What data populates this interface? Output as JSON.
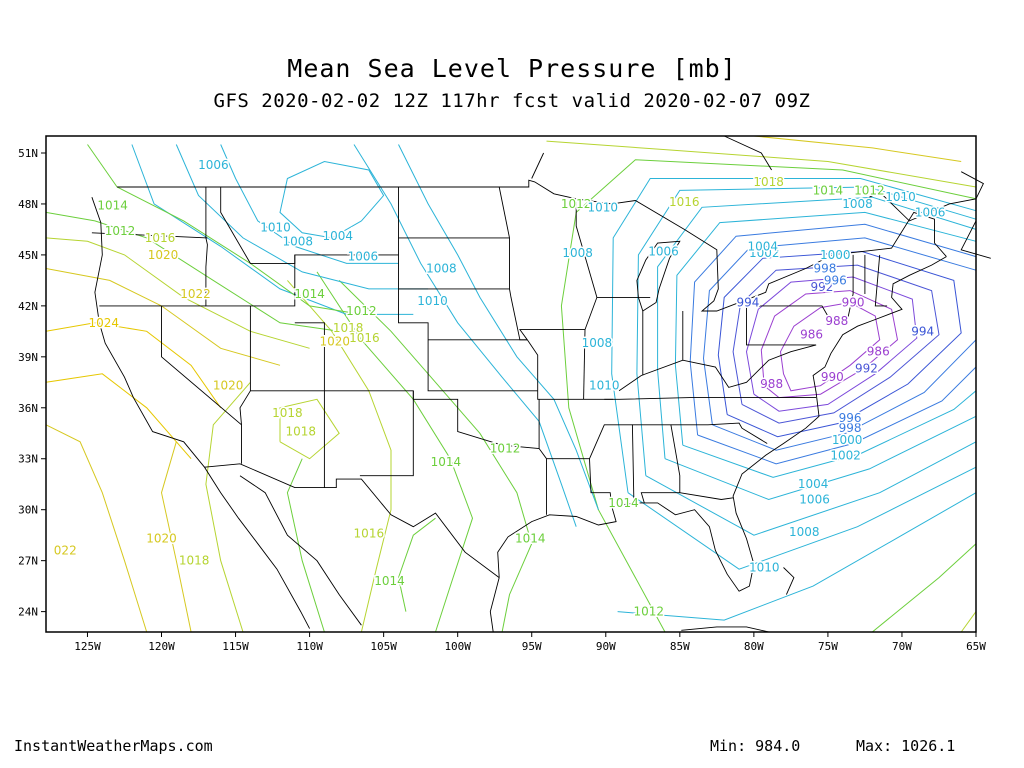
{
  "header": {
    "title": "Mean Sea Level Pressure [mb]",
    "subtitle": "GFS 2020-02-02 12Z 117hr fcst valid 2020-02-07 09Z"
  },
  "axes": {
    "lat_ticks": [
      "51N",
      "48N",
      "45N",
      "42N",
      "39N",
      "36N",
      "33N",
      "30N",
      "27N",
      "24N"
    ],
    "lon_ticks": [
      "125W",
      "120W",
      "115W",
      "110W",
      "105W",
      "100W",
      "95W",
      "90W",
      "85W",
      "80W",
      "75W",
      "70W",
      "65W"
    ]
  },
  "contour_labels": [
    {
      "text": "1006",
      "lon": -116.5,
      "lat": 50.3,
      "color": "#2cb4d8"
    },
    {
      "text": "1014",
      "lon": -123.3,
      "lat": 47.9,
      "color": "#6ccf3c"
    },
    {
      "text": "1012",
      "lon": -122.8,
      "lat": 46.4,
      "color": "#6ccf3c"
    },
    {
      "text": "1016",
      "lon": -120.1,
      "lat": 46.0,
      "color": "#b6d431"
    },
    {
      "text": "1020",
      "lon": -119.9,
      "lat": 45.0,
      "color": "#d6c820"
    },
    {
      "text": "1022",
      "lon": -117.7,
      "lat": 42.7,
      "color": "#d6c820"
    },
    {
      "text": "1024",
      "lon": -123.9,
      "lat": 41.0,
      "color": "#e6c700"
    },
    {
      "text": "1020",
      "lon": -115.5,
      "lat": 37.3,
      "color": "#d6c820"
    },
    {
      "text": "1018",
      "lon": -111.5,
      "lat": 35.7,
      "color": "#b6d431"
    },
    {
      "text": "1018",
      "lon": -110.6,
      "lat": 34.6,
      "color": "#b6d431"
    },
    {
      "text": "1010",
      "lon": -112.3,
      "lat": 46.6,
      "color": "#2cb4d8"
    },
    {
      "text": "1008",
      "lon": -110.8,
      "lat": 45.8,
      "color": "#2cb4d8"
    },
    {
      "text": "1004",
      "lon": -108.1,
      "lat": 46.1,
      "color": "#2cb4d8"
    },
    {
      "text": "1006",
      "lon": -106.4,
      "lat": 44.9,
      "color": "#2cb4d8"
    },
    {
      "text": "1014",
      "lon": -110.0,
      "lat": 42.7,
      "color": "#6ccf3c"
    },
    {
      "text": "1012",
      "lon": -106.5,
      "lat": 41.7,
      "color": "#6ccf3c"
    },
    {
      "text": "1018",
      "lon": -107.4,
      "lat": 40.7,
      "color": "#b6d431"
    },
    {
      "text": "1020",
      "lon": -108.3,
      "lat": 39.9,
      "color": "#d6c820"
    },
    {
      "text": "1016",
      "lon": -106.3,
      "lat": 40.1,
      "color": "#b6d431"
    },
    {
      "text": "1008",
      "lon": -101.1,
      "lat": 44.2,
      "color": "#2cb4d8"
    },
    {
      "text": "1010",
      "lon": -101.7,
      "lat": 42.3,
      "color": "#2cb4d8"
    },
    {
      "text": "1008",
      "lon": -90.6,
      "lat": 39.8,
      "color": "#2cb4d8"
    },
    {
      "text": "1010",
      "lon": -90.1,
      "lat": 37.3,
      "color": "#2cb4d8"
    },
    {
      "text": "1014",
      "lon": -100.8,
      "lat": 32.8,
      "color": "#6ccf3c"
    },
    {
      "text": "1012",
      "lon": -96.8,
      "lat": 33.6,
      "color": "#6ccf3c"
    },
    {
      "text": "1014",
      "lon": -88.8,
      "lat": 30.4,
      "color": "#6ccf3c"
    },
    {
      "text": "1016",
      "lon": -106.0,
      "lat": 28.6,
      "color": "#b6d431"
    },
    {
      "text": "1014",
      "lon": -95.1,
      "lat": 28.3,
      "color": "#6ccf3c"
    },
    {
      "text": "1014",
      "lon": -104.6,
      "lat": 25.8,
      "color": "#6ccf3c"
    },
    {
      "text": "1020",
      "lon": -120.0,
      "lat": 28.3,
      "color": "#d6c820"
    },
    {
      "text": "1018",
      "lon": -117.8,
      "lat": 27.0,
      "color": "#b6d431"
    },
    {
      "text": "022",
      "lon": -126.5,
      "lat": 27.6,
      "color": "#d6c820"
    },
    {
      "text": "1012",
      "lon": -87.1,
      "lat": 24.0,
      "color": "#6ccf3c"
    },
    {
      "text": "1010",
      "lon": -79.3,
      "lat": 26.6,
      "color": "#2cb4d8"
    },
    {
      "text": "1008",
      "lon": -76.6,
      "lat": 28.7,
      "color": "#2cb4d8"
    },
    {
      "text": "1006",
      "lon": -75.9,
      "lat": 30.6,
      "color": "#2cb4d8"
    },
    {
      "text": "1004",
      "lon": -76.0,
      "lat": 31.5,
      "color": "#2cb4d8"
    },
    {
      "text": "1002",
      "lon": -73.8,
      "lat": 33.2,
      "color": "#2cb4d8"
    },
    {
      "text": "1000",
      "lon": -73.7,
      "lat": 34.1,
      "color": "#2cb4d8"
    },
    {
      "text": "998",
      "lon": -73.5,
      "lat": 34.8,
      "color": "#3a7be0"
    },
    {
      "text": "996",
      "lon": -73.5,
      "lat": 35.4,
      "color": "#3a7be0"
    },
    {
      "text": "988",
      "lon": -78.8,
      "lat": 37.4,
      "color": "#9b3fd0"
    },
    {
      "text": "990",
      "lon": -74.7,
      "lat": 37.8,
      "color": "#9b3fd0"
    },
    {
      "text": "992",
      "lon": -72.4,
      "lat": 38.3,
      "color": "#4b55d6"
    },
    {
      "text": "986",
      "lon": -71.6,
      "lat": 39.3,
      "color": "#9b3fd0"
    },
    {
      "text": "986",
      "lon": -76.1,
      "lat": 40.3,
      "color": "#9b3fd0"
    },
    {
      "text": "988",
      "lon": -74.4,
      "lat": 41.1,
      "color": "#9b3fd0"
    },
    {
      "text": "990",
      "lon": -73.3,
      "lat": 42.2,
      "color": "#9b3fd0"
    },
    {
      "text": "994",
      "lon": -68.6,
      "lat": 40.5,
      "color": "#3a55d6"
    },
    {
      "text": "994",
      "lon": -80.4,
      "lat": 42.2,
      "color": "#3a55d6"
    },
    {
      "text": "992",
      "lon": -75.4,
      "lat": 43.1,
      "color": "#4b55d6"
    },
    {
      "text": "996",
      "lon": -74.5,
      "lat": 43.5,
      "color": "#3a7be0"
    },
    {
      "text": "998",
      "lon": -75.2,
      "lat": 44.2,
      "color": "#3a7be0"
    },
    {
      "text": "1000",
      "lon": -74.5,
      "lat": 45.0,
      "color": "#2cb4d8"
    },
    {
      "text": "1002",
      "lon": -79.3,
      "lat": 45.1,
      "color": "#2cb4d8"
    },
    {
      "text": "1004",
      "lon": -79.4,
      "lat": 45.5,
      "color": "#2cb4d8"
    },
    {
      "text": "1006",
      "lon": -86.1,
      "lat": 45.2,
      "color": "#2cb4d8"
    },
    {
      "text": "1008",
      "lon": -91.9,
      "lat": 45.1,
      "color": "#2cb4d8"
    },
    {
      "text": "1012",
      "lon": -92.0,
      "lat": 48.0,
      "color": "#6ccf3c"
    },
    {
      "text": "1010",
      "lon": -90.2,
      "lat": 47.8,
      "color": "#2cb4d8"
    },
    {
      "text": "1016",
      "lon": -84.7,
      "lat": 48.1,
      "color": "#b6d431"
    },
    {
      "text": "1018",
      "lon": -79.0,
      "lat": 49.3,
      "color": "#b6d431"
    },
    {
      "text": "1014",
      "lon": -75.0,
      "lat": 48.8,
      "color": "#6ccf3c"
    },
    {
      "text": "1012",
      "lon": -72.2,
      "lat": 48.8,
      "color": "#6ccf3c"
    },
    {
      "text": "1008",
      "lon": -73.0,
      "lat": 48.0,
      "color": "#2cb4d8"
    },
    {
      "text": "1010",
      "lon": -70.1,
      "lat": 48.4,
      "color": "#2cb4d8"
    },
    {
      "text": "1006",
      "lon": -68.1,
      "lat": 47.5,
      "color": "#2cb4d8"
    }
  ],
  "footer": {
    "credit": "InstantWeatherMaps.com",
    "min_text": "Min:  984.0",
    "max_text": "Max: 1026.1"
  },
  "colors": {
    "frame": "#000000",
    "boundaries": "#000000",
    "label_outline": "#ffffff"
  }
}
